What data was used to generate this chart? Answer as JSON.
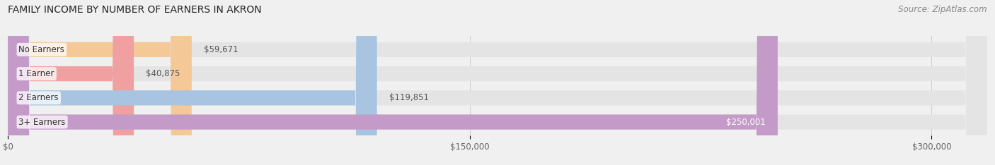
{
  "title": "FAMILY INCOME BY NUMBER OF EARNERS IN AKRON",
  "source": "Source: ZipAtlas.com",
  "categories": [
    "No Earners",
    "1 Earner",
    "2 Earners",
    "3+ Earners"
  ],
  "values": [
    59671,
    40875,
    119851,
    250001
  ],
  "bar_colors": [
    "#f5c897",
    "#f0a0a0",
    "#a8c4e0",
    "#c49ac8"
  ],
  "label_colors": [
    "#555555",
    "#555555",
    "#555555",
    "#ffffff"
  ],
  "label_texts": [
    "$59,671",
    "$40,875",
    "$119,851",
    "$250,001"
  ],
  "x_ticks": [
    0,
    150000,
    300000
  ],
  "x_tick_labels": [
    "$0",
    "$150,000",
    "$300,000"
  ],
  "x_max": 318000,
  "background_color": "#f0f0f0",
  "bar_bg_color": "#e4e4e4",
  "title_fontsize": 10,
  "source_fontsize": 8.5,
  "label_fontsize": 8.5,
  "category_fontsize": 8.5,
  "tick_fontsize": 8.5
}
